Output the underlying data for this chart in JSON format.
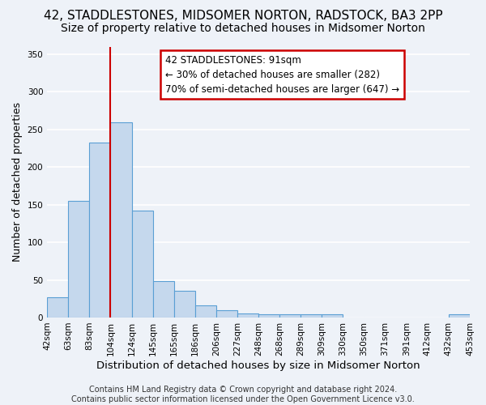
{
  "title": "42, STADDLESTONES, MIDSOMER NORTON, RADSTOCK, BA3 2PP",
  "subtitle": "Size of property relative to detached houses in Midsomer Norton",
  "xlabel": "Distribution of detached houses by size in Midsomer Norton",
  "ylabel": "Number of detached properties",
  "bar_color": "#c5d8ed",
  "bar_edge_color": "#5a9fd4",
  "background_color": "#eef2f8",
  "grid_color": "#ffffff",
  "tick_labels": [
    "42sqm",
    "63sqm",
    "83sqm",
    "104sqm",
    "124sqm",
    "145sqm",
    "165sqm",
    "186sqm",
    "206sqm",
    "227sqm",
    "248sqm",
    "268sqm",
    "289sqm",
    "309sqm",
    "330sqm",
    "350sqm",
    "371sqm",
    "391sqm",
    "412sqm",
    "432sqm",
    "453sqm"
  ],
  "bar_values": [
    27,
    155,
    232,
    259,
    142,
    48,
    35,
    16,
    10,
    5,
    4,
    4,
    4,
    4,
    0,
    0,
    0,
    0,
    0,
    4
  ],
  "ylim": [
    0,
    360
  ],
  "yticks": [
    0,
    50,
    100,
    150,
    200,
    250,
    300,
    350
  ],
  "vline_color": "#cc0000",
  "vline_position": 2.5,
  "annotation_text": "42 STADDLESTONES: 91sqm\n← 30% of detached houses are smaller (282)\n70% of semi-detached houses are larger (647) →",
  "annotation_box_facecolor": "#ffffff",
  "annotation_box_edgecolor": "#cc0000",
  "footer_text": "Contains HM Land Registry data © Crown copyright and database right 2024.\nContains public sector information licensed under the Open Government Licence v3.0.",
  "title_fontsize": 11,
  "subtitle_fontsize": 10,
  "xlabel_fontsize": 9.5,
  "ylabel_fontsize": 9,
  "tick_fontsize": 7.5,
  "annotation_fontsize": 8.5,
  "footer_fontsize": 7
}
